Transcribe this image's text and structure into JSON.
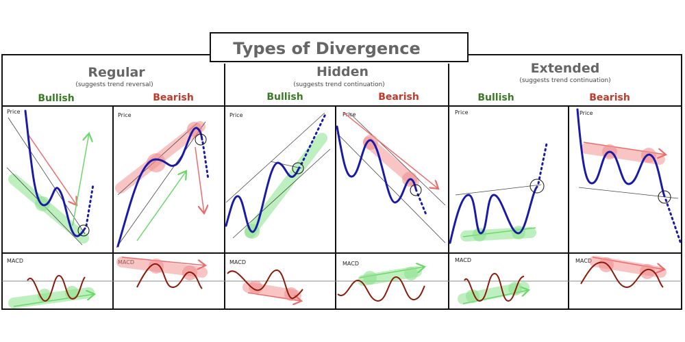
{
  "title": "Types of Divergence",
  "columns": [
    {
      "name": "Regular",
      "note": "(suggests trend reversal)",
      "bullish": "Bullish",
      "bearish": "Bearish"
    },
    {
      "name": "Hidden",
      "note": "(suggests trend continuation)",
      "bullish": "Bullish",
      "bearish": "Bearish"
    },
    {
      "name": "Extended",
      "note": "(suggests trend continuation)",
      "bullish": "Bullish",
      "bearish": "Bearish"
    }
  ],
  "panel_labels": {
    "price": "Price",
    "macd": "MACD"
  },
  "colors": {
    "bullish": "#3a7a25",
    "bearish": "#c0392b",
    "price_line": "#1a1aa8",
    "macd_line": "#8b1a0a"
  }
}
